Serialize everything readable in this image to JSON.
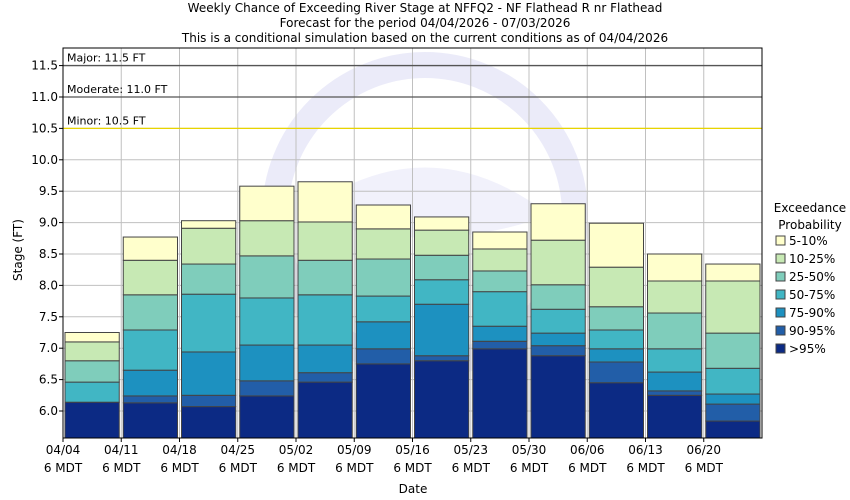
{
  "chart_data": {
    "type": "bar",
    "subtype": "stacked-exceedance",
    "title": [
      "Weekly Chance of Exceeding River Stage at NFFQ2 - NF Flathead R nr Flathead",
      "Forecast for the period 04/04/2026 - 07/03/2026",
      "This is a conditional simulation based on the current conditions as of 04/04/2026"
    ],
    "xlabel": "Date",
    "ylabel": "Stage (FT)",
    "ylim": [
      5.57,
      11.78
    ],
    "yticks": [
      "6.0",
      "6.5",
      "7.0",
      "7.5",
      "8.0",
      "8.5",
      "9.0",
      "9.5",
      "10.0",
      "10.5",
      "11.0",
      "11.5"
    ],
    "grid": true,
    "categories": [
      "04/04",
      "04/11",
      "04/18",
      "04/25",
      "05/02",
      "05/09",
      "05/16",
      "05/23",
      "05/30",
      "06/06",
      "06/13",
      "06/20"
    ],
    "tick_sublabel": "6 MDT",
    "exceedance_levels_note": "values per week at 5%,10%,25%,50%,75%,90%,95% exceedance",
    "values": [
      [
        7.25,
        7.1,
        6.8,
        6.46,
        6.14,
        6.14,
        6.14
      ],
      [
        8.77,
        8.4,
        7.85,
        7.29,
        6.65,
        6.24,
        6.13
      ],
      [
        9.03,
        8.91,
        8.34,
        7.86,
        6.94,
        6.25,
        6.07
      ],
      [
        9.58,
        9.03,
        8.47,
        7.8,
        7.05,
        6.48,
        6.24
      ],
      [
        9.65,
        9.01,
        8.4,
        7.85,
        7.05,
        6.61,
        6.46
      ],
      [
        9.28,
        8.9,
        8.42,
        7.83,
        7.42,
        6.99,
        6.75
      ],
      [
        9.09,
        8.88,
        8.48,
        8.09,
        7.7,
        6.88,
        6.8
      ],
      [
        8.85,
        8.58,
        8.23,
        7.9,
        7.35,
        7.11,
        6.99
      ],
      [
        9.3,
        8.72,
        8.01,
        7.62,
        7.24,
        7.04,
        6.88
      ],
      [
        8.99,
        8.29,
        7.66,
        7.29,
        6.99,
        6.78,
        6.45
      ],
      [
        8.5,
        8.07,
        7.56,
        6.99,
        6.62,
        6.32,
        6.25
      ],
      [
        8.34,
        8.07,
        7.24,
        6.68,
        6.27,
        6.11,
        5.84
      ]
    ],
    "legend": {
      "title": [
        "Exceedance",
        "Probability"
      ],
      "placement": "right",
      "items": [
        {
          "label": "5-10%",
          "color": "#ffffcc"
        },
        {
          "label": "10-25%",
          "color": "#c7e9b4"
        },
        {
          "label": "25-50%",
          "color": "#7fcdbb"
        },
        {
          "label": "50-75%",
          "color": "#41b6c4"
        },
        {
          "label": "75-90%",
          "color": "#1d91c0"
        },
        {
          "label": "90-95%",
          "color": "#225ea8"
        },
        {
          "label": ">95%",
          "color": "#0c2a84"
        }
      ]
    },
    "thresholds": [
      {
        "label": "Major: 11.5 FT",
        "value": 11.5,
        "color": "#555555"
      },
      {
        "label": "Moderate: 11.0 FT",
        "value": 11.0,
        "color": "#555555"
      },
      {
        "label": "Minor: 10.5 FT",
        "value": 10.5,
        "color": "#e8d400"
      }
    ],
    "watermark": "NOAA - National Oceanic and Atmospheric Administration"
  }
}
